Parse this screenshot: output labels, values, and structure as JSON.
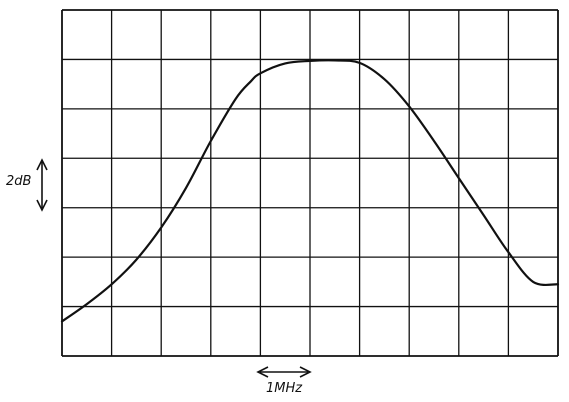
{
  "chart_data": {
    "type": "line",
    "grid": "on",
    "grid_divisions": {
      "x": 10,
      "y": 7
    },
    "x_scale": {
      "label": "1MHz",
      "divisions_per_label": 1
    },
    "y_scale": {
      "label": "2dB",
      "divisions_per_label": 1
    },
    "series": [
      {
        "x": [
          0,
          0.5,
          1.0,
          1.5,
          2.0,
          2.5,
          3.0,
          3.5,
          3.8,
          4.0,
          4.5,
          5.0,
          5.5,
          6.0,
          6.5,
          7.0,
          7.5,
          8.0,
          8.5,
          9.0,
          9.5,
          10.0
        ],
        "y": [
          0.7,
          1.05,
          1.45,
          1.95,
          2.6,
          3.4,
          4.35,
          5.2,
          5.55,
          5.72,
          5.92,
          5.97,
          5.98,
          5.93,
          5.6,
          5.05,
          4.35,
          3.6,
          2.85,
          2.1,
          1.5,
          1.45
        ]
      }
    ]
  },
  "colors": {
    "ink": "#111111",
    "background": "#ffffff"
  }
}
